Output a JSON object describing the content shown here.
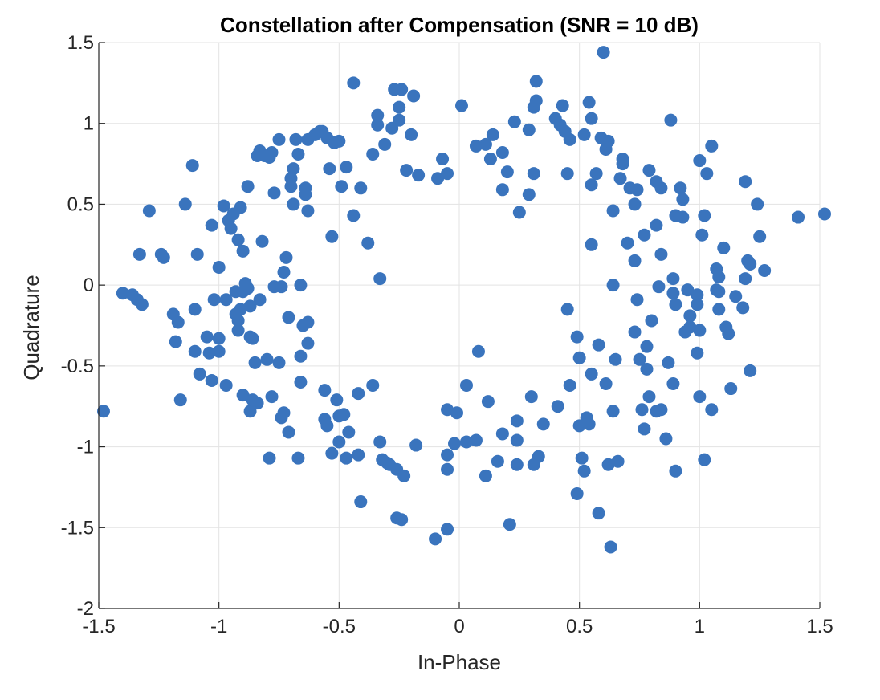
{
  "chart_data": {
    "type": "scatter",
    "title": "Constellation after Compensation (SNR = 10 dB)",
    "xlabel": "In-Phase",
    "ylabel": "Quadrature",
    "xlim": [
      -1.5,
      1.5
    ],
    "ylim": [
      -2,
      1.5
    ],
    "xticks": [
      -1.5,
      -1,
      -0.5,
      0,
      0.5,
      1,
      1.5
    ],
    "xtick_labels": [
      "-1.5",
      "-1",
      "-0.5",
      "0",
      "0.5",
      "1",
      "1.5"
    ],
    "yticks": [
      -2,
      -1.5,
      -1,
      -0.5,
      0,
      0.5,
      1,
      1.5
    ],
    "ytick_labels": [
      "-2",
      "-1.5",
      "-1",
      "-0.5",
      "0",
      "0.5",
      "1",
      "1.5"
    ],
    "grid": true,
    "marker_color": "#3a74bd",
    "series": [
      {
        "points": [
          [
            -1.48,
            -0.78
          ],
          [
            -1.4,
            -0.05
          ],
          [
            -1.36,
            -0.06
          ],
          [
            -1.34,
            -0.09
          ],
          [
            -1.32,
            -0.12
          ],
          [
            -1.29,
            0.46
          ],
          [
            -1.33,
            0.19
          ],
          [
            -1.24,
            0.19
          ],
          [
            -1.23,
            0.17
          ],
          [
            -1.19,
            -0.18
          ],
          [
            -1.17,
            -0.23
          ],
          [
            -1.18,
            -0.35
          ],
          [
            -1.16,
            -0.71
          ],
          [
            -1.14,
            0.5
          ],
          [
            -1.11,
            0.74
          ],
          [
            -1.1,
            -0.15
          ],
          [
            -1.1,
            -0.41
          ],
          [
            -1.09,
            0.19
          ],
          [
            -1.08,
            -0.55
          ],
          [
            -1.05,
            -0.32
          ],
          [
            -1.04,
            -0.42
          ],
          [
            -1.03,
            -0.59
          ],
          [
            -1.03,
            0.37
          ],
          [
            -1.02,
            -0.09
          ],
          [
            -1.0,
            -0.41
          ],
          [
            -1.0,
            -0.33
          ],
          [
            -1.0,
            0.11
          ],
          [
            -0.98,
            0.49
          ],
          [
            -0.97,
            -0.09
          ],
          [
            -0.97,
            -0.62
          ],
          [
            -0.96,
            0.4
          ],
          [
            -0.95,
            0.35
          ],
          [
            -0.94,
            0.44
          ],
          [
            -0.93,
            -0.18
          ],
          [
            -0.93,
            -0.04
          ],
          [
            -0.92,
            -0.28
          ],
          [
            -0.92,
            -0.22
          ],
          [
            -0.92,
            0.28
          ],
          [
            -0.91,
            0.48
          ],
          [
            -0.91,
            -0.15
          ],
          [
            -0.9,
            -0.68
          ],
          [
            -0.9,
            0.21
          ],
          [
            -0.9,
            -0.04
          ],
          [
            -0.89,
            0.01
          ],
          [
            -0.88,
            -0.02
          ],
          [
            -0.88,
            0.61
          ],
          [
            -0.87,
            -0.32
          ],
          [
            -0.87,
            -0.78
          ],
          [
            -0.87,
            -0.13
          ],
          [
            -0.86,
            -0.33
          ],
          [
            -0.86,
            -0.71
          ],
          [
            -0.85,
            -0.48
          ],
          [
            -0.84,
            0.8
          ],
          [
            -0.84,
            -0.73
          ],
          [
            -0.83,
            0.83
          ],
          [
            -0.83,
            -0.09
          ],
          [
            -0.82,
            0.27
          ],
          [
            -0.81,
            0.8
          ],
          [
            -0.8,
            -0.46
          ],
          [
            -0.79,
            0.79
          ],
          [
            -0.79,
            -1.07
          ],
          [
            -0.78,
            -0.69
          ],
          [
            -0.78,
            0.82
          ],
          [
            -0.77,
            0.57
          ],
          [
            -0.77,
            -0.01
          ],
          [
            -0.75,
            0.9
          ],
          [
            -0.75,
            -0.48
          ],
          [
            -0.74,
            -0.01
          ],
          [
            -0.74,
            -0.82
          ],
          [
            -0.73,
            0.08
          ],
          [
            -0.73,
            -0.79
          ],
          [
            -0.72,
            0.17
          ],
          [
            -0.71,
            -0.91
          ],
          [
            -0.71,
            -0.2
          ],
          [
            -0.7,
            0.61
          ],
          [
            -0.7,
            0.66
          ],
          [
            -0.69,
            0.72
          ],
          [
            -0.69,
            0.5
          ],
          [
            -0.68,
            0.9
          ],
          [
            -0.67,
            0.81
          ],
          [
            -0.67,
            -1.07
          ],
          [
            -0.66,
            -0.6
          ],
          [
            -0.66,
            -0.44
          ],
          [
            -0.66,
            0.0
          ],
          [
            -0.65,
            -0.25
          ],
          [
            -0.64,
            0.6
          ],
          [
            -0.64,
            0.56
          ],
          [
            -0.63,
            0.9
          ],
          [
            -0.63,
            -0.23
          ],
          [
            -0.63,
            0.46
          ],
          [
            -0.63,
            -0.36
          ],
          [
            -0.6,
            0.93
          ],
          [
            -0.58,
            0.95
          ],
          [
            -0.57,
            0.95
          ],
          [
            -0.56,
            -0.65
          ],
          [
            -0.56,
            -0.83
          ],
          [
            -0.55,
            -0.87
          ],
          [
            -0.55,
            0.91
          ],
          [
            -0.54,
            0.72
          ],
          [
            -0.53,
            0.3
          ],
          [
            -0.53,
            -1.04
          ],
          [
            -0.52,
            0.88
          ],
          [
            -0.51,
            -0.71
          ],
          [
            -0.5,
            0.89
          ],
          [
            -0.5,
            -0.81
          ],
          [
            -0.5,
            -0.97
          ],
          [
            -0.49,
            0.61
          ],
          [
            -0.48,
            -0.8
          ],
          [
            -0.47,
            0.73
          ],
          [
            -0.47,
            -1.07
          ],
          [
            -0.46,
            -0.91
          ],
          [
            -0.44,
            1.25
          ],
          [
            -0.44,
            0.43
          ],
          [
            -0.42,
            -0.67
          ],
          [
            -0.42,
            -1.05
          ],
          [
            -0.41,
            0.6
          ],
          [
            -0.41,
            -1.34
          ],
          [
            -0.38,
            0.26
          ],
          [
            -0.36,
            -0.62
          ],
          [
            -0.36,
            0.81
          ],
          [
            -0.34,
            1.05
          ],
          [
            -0.34,
            0.99
          ],
          [
            -0.33,
            0.04
          ],
          [
            -0.33,
            -0.97
          ],
          [
            -0.32,
            -1.08
          ],
          [
            -0.31,
            0.87
          ],
          [
            -0.3,
            -1.1
          ],
          [
            -0.29,
            -1.11
          ],
          [
            -0.28,
            0.97
          ],
          [
            -0.27,
            1.21
          ],
          [
            -0.26,
            -1.44
          ],
          [
            -0.25,
            1.02
          ],
          [
            -0.25,
            1.1
          ],
          [
            -0.24,
            1.21
          ],
          [
            -0.24,
            -1.45
          ],
          [
            -0.23,
            -1.18
          ],
          [
            -0.22,
            0.71
          ],
          [
            -0.2,
            0.93
          ],
          [
            -0.19,
            1.17
          ],
          [
            -0.18,
            -0.99
          ],
          [
            -0.17,
            0.68
          ],
          [
            -0.1,
            -1.57
          ],
          [
            -0.09,
            0.66
          ],
          [
            -0.07,
            0.78
          ],
          [
            -0.05,
            0.69
          ],
          [
            -0.05,
            -0.77
          ],
          [
            -0.05,
            -1.51
          ],
          [
            -0.05,
            -1.05
          ],
          [
            -0.05,
            -1.14
          ],
          [
            -0.02,
            -0.98
          ],
          [
            -0.01,
            -0.79
          ],
          [
            0.01,
            1.11
          ],
          [
            0.03,
            -0.62
          ],
          [
            0.03,
            -0.97
          ],
          [
            0.07,
            0.86
          ],
          [
            0.07,
            -0.96
          ],
          [
            0.08,
            -0.41
          ],
          [
            0.11,
            0.87
          ],
          [
            0.11,
            -1.18
          ],
          [
            0.12,
            -0.72
          ],
          [
            0.13,
            0.78
          ],
          [
            0.14,
            0.93
          ],
          [
            0.16,
            -1.09
          ],
          [
            0.18,
            0.82
          ],
          [
            0.18,
            0.59
          ],
          [
            0.18,
            -0.92
          ],
          [
            0.2,
            0.7
          ],
          [
            0.21,
            -1.48
          ],
          [
            0.23,
            1.01
          ],
          [
            0.24,
            -1.11
          ],
          [
            0.24,
            -0.84
          ],
          [
            0.24,
            -0.96
          ],
          [
            0.25,
            0.45
          ],
          [
            0.29,
            0.96
          ],
          [
            0.29,
            0.56
          ],
          [
            0.3,
            -0.69
          ],
          [
            0.31,
            1.1
          ],
          [
            0.31,
            0.69
          ],
          [
            0.31,
            -1.11
          ],
          [
            0.32,
            1.26
          ],
          [
            0.32,
            1.14
          ],
          [
            0.33,
            -1.06
          ],
          [
            0.35,
            -0.86
          ],
          [
            0.4,
            1.03
          ],
          [
            0.41,
            -0.75
          ],
          [
            0.42,
            0.99
          ],
          [
            0.43,
            1.11
          ],
          [
            0.44,
            0.95
          ],
          [
            0.45,
            0.69
          ],
          [
            0.45,
            -0.15
          ],
          [
            0.46,
            0.9
          ],
          [
            0.46,
            -0.62
          ],
          [
            0.49,
            -1.29
          ],
          [
            0.49,
            -0.32
          ],
          [
            0.5,
            -0.87
          ],
          [
            0.5,
            -0.45
          ],
          [
            0.51,
            -1.07
          ],
          [
            0.52,
            -1.15
          ],
          [
            0.52,
            0.93
          ],
          [
            0.53,
            -0.82
          ],
          [
            0.54,
            -0.86
          ],
          [
            0.54,
            1.13
          ],
          [
            0.55,
            0.62
          ],
          [
            0.55,
            0.25
          ],
          [
            0.55,
            -0.55
          ],
          [
            0.55,
            1.03
          ],
          [
            0.57,
            0.69
          ],
          [
            0.58,
            -0.37
          ],
          [
            0.58,
            -1.41
          ],
          [
            0.59,
            0.91
          ],
          [
            0.6,
            1.44
          ],
          [
            0.61,
            0.84
          ],
          [
            0.62,
            -1.11
          ],
          [
            0.62,
            0.89
          ],
          [
            0.63,
            -1.62
          ],
          [
            0.64,
            0.46
          ],
          [
            0.64,
            0.0
          ],
          [
            0.64,
            -0.78
          ],
          [
            0.65,
            -0.46
          ],
          [
            0.66,
            -1.09
          ],
          [
            0.67,
            0.66
          ],
          [
            0.68,
            0.78
          ],
          [
            0.68,
            0.75
          ],
          [
            0.7,
            0.26
          ],
          [
            0.71,
            0.6
          ],
          [
            0.73,
            0.15
          ],
          [
            0.73,
            0.5
          ],
          [
            0.73,
            -0.29
          ],
          [
            0.74,
            -0.09
          ],
          [
            0.74,
            0.59
          ],
          [
            0.75,
            -0.46
          ],
          [
            0.76,
            -0.77
          ],
          [
            0.77,
            -0.89
          ],
          [
            0.77,
            0.31
          ],
          [
            0.78,
            -0.52
          ],
          [
            0.78,
            -0.38
          ],
          [
            0.79,
            0.71
          ],
          [
            0.79,
            -0.69
          ],
          [
            0.8,
            -0.22
          ],
          [
            0.82,
            0.37
          ],
          [
            0.82,
            0.64
          ],
          [
            0.82,
            -0.78
          ],
          [
            0.83,
            -0.01
          ],
          [
            0.84,
            0.6
          ],
          [
            0.84,
            0.19
          ],
          [
            0.84,
            -0.77
          ],
          [
            0.86,
            -0.95
          ],
          [
            0.87,
            -0.48
          ],
          [
            0.88,
            1.02
          ],
          [
            0.89,
            0.04
          ],
          [
            0.89,
            -0.05
          ],
          [
            0.89,
            -0.61
          ],
          [
            0.9,
            -1.15
          ],
          [
            0.9,
            -0.12
          ],
          [
            0.9,
            0.43
          ],
          [
            0.92,
            0.6
          ],
          [
            0.93,
            0.42
          ],
          [
            0.93,
            0.53
          ],
          [
            0.94,
            -0.29
          ],
          [
            0.95,
            -0.03
          ],
          [
            0.96,
            -0.26
          ],
          [
            0.96,
            -0.19
          ],
          [
            0.99,
            -0.06
          ],
          [
            0.99,
            -0.12
          ],
          [
            0.99,
            -0.42
          ],
          [
            1.0,
            -0.28
          ],
          [
            1.0,
            -0.69
          ],
          [
            1.0,
            0.77
          ],
          [
            1.01,
            0.31
          ],
          [
            1.02,
            -1.08
          ],
          [
            1.02,
            0.43
          ],
          [
            1.03,
            0.69
          ],
          [
            1.05,
            0.86
          ],
          [
            1.05,
            -0.77
          ],
          [
            1.07,
            -0.03
          ],
          [
            1.07,
            0.1
          ],
          [
            1.08,
            -0.15
          ],
          [
            1.08,
            -0.04
          ],
          [
            1.08,
            0.05
          ],
          [
            1.1,
            0.23
          ],
          [
            1.11,
            -0.26
          ],
          [
            1.12,
            -0.3
          ],
          [
            1.13,
            -0.64
          ],
          [
            1.15,
            -0.07
          ],
          [
            1.18,
            -0.14
          ],
          [
            1.19,
            0.64
          ],
          [
            1.19,
            0.04
          ],
          [
            1.2,
            0.15
          ],
          [
            1.21,
            0.13
          ],
          [
            1.21,
            -0.53
          ],
          [
            1.24,
            0.5
          ],
          [
            1.25,
            0.3
          ],
          [
            1.27,
            0.09
          ],
          [
            1.41,
            0.42
          ],
          [
            1.52,
            0.44
          ],
          [
            0.61,
            -0.61
          ],
          [
            -0.26,
            -1.14
          ]
        ]
      }
    ]
  }
}
